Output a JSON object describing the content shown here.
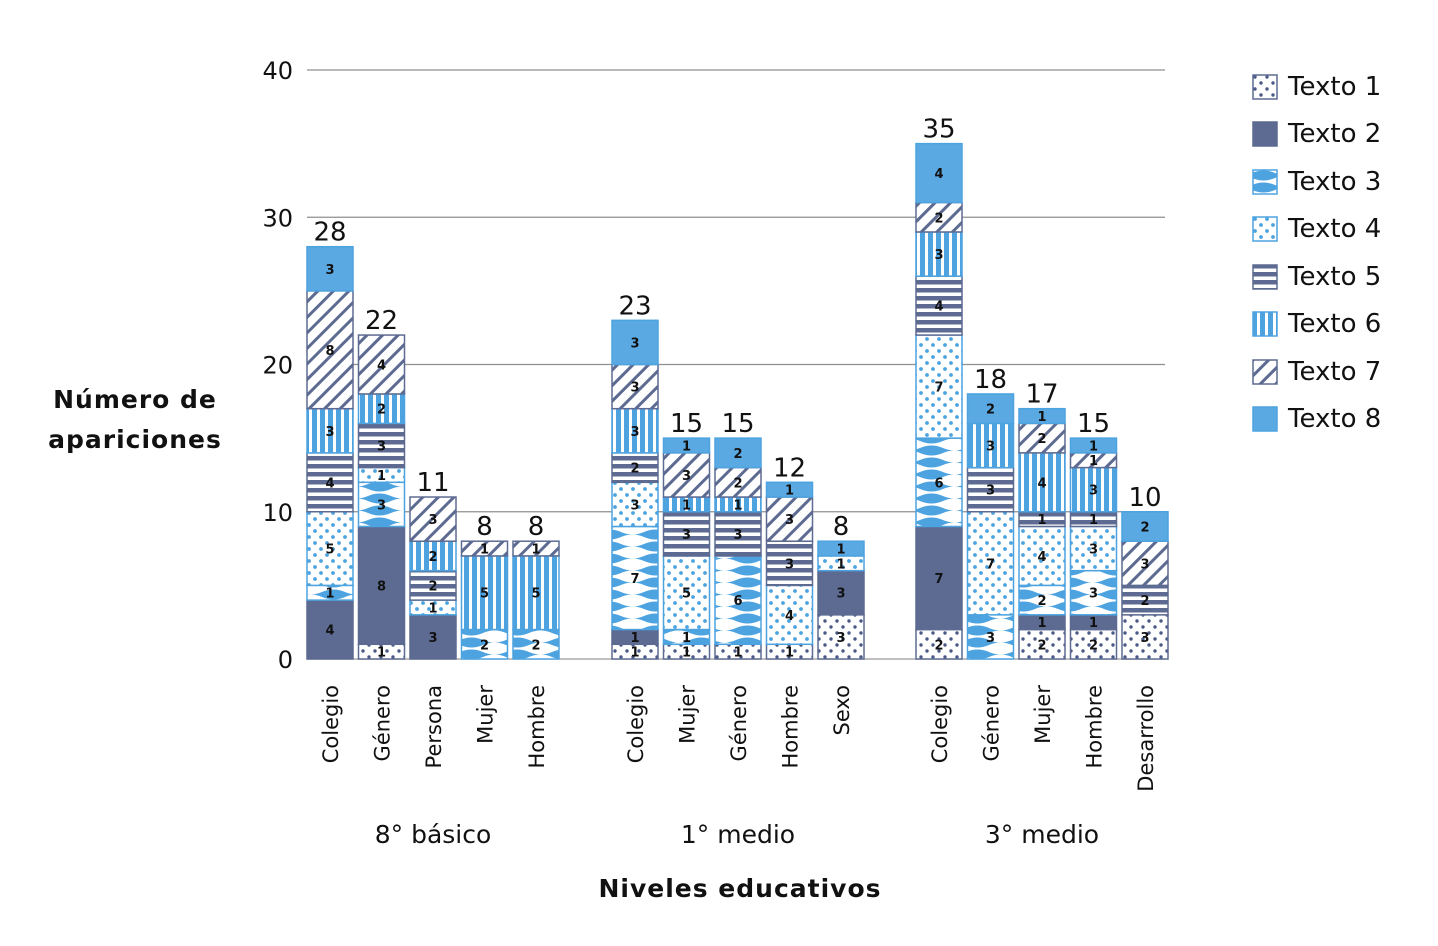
{
  "chart_data": {
    "type": "bar",
    "stacked": true,
    "title": "",
    "xlabel": "Niveles educativos",
    "ylabel": "Número de\napariciones",
    "ylim": [
      0,
      40
    ],
    "yticks": [
      0,
      10,
      20,
      30,
      40
    ],
    "grid": true,
    "legend_position": "right",
    "groups": [
      {
        "label": "8° básico",
        "categories": [
          "Colegio",
          "Género",
          "Persona",
          "Mujer",
          "Hombre"
        ]
      },
      {
        "label": "1° medio",
        "categories": [
          "Colegio",
          "Mujer",
          "Género",
          "Hombre",
          "Sexo"
        ]
      },
      {
        "label": "3° medio",
        "categories": [
          "Colegio",
          "Género",
          "Mujer",
          "Hombre",
          "Desarrollo"
        ]
      }
    ],
    "totals": [
      28,
      22,
      11,
      8,
      8,
      23,
      15,
      15,
      12,
      8,
      35,
      18,
      17,
      15,
      10
    ],
    "series": [
      {
        "name": "Texto 1",
        "pattern": "dots-dark",
        "color": "#3d4f7c",
        "values": [
          0,
          1,
          0,
          0,
          0,
          1,
          1,
          1,
          1,
          3,
          2,
          0,
          2,
          2,
          3
        ]
      },
      {
        "name": "Texto 2",
        "pattern": "solid",
        "color": "#5d6b92",
        "values": [
          4,
          8,
          3,
          0,
          0,
          1,
          0,
          0,
          0,
          3,
          7,
          0,
          1,
          1,
          0
        ]
      },
      {
        "name": "Texto 3",
        "pattern": "waves",
        "color": "#4da3e0",
        "values": [
          1,
          3,
          0,
          2,
          2,
          7,
          1,
          6,
          0,
          0,
          6,
          3,
          2,
          3,
          0
        ]
      },
      {
        "name": "Texto 4",
        "pattern": "dots-light",
        "color": "#4da3e0",
        "values": [
          5,
          1,
          1,
          0,
          0,
          3,
          5,
          0,
          4,
          1,
          7,
          7,
          4,
          3,
          0
        ]
      },
      {
        "name": "Texto 5",
        "pattern": "horizontal",
        "color": "#5d6b92",
        "values": [
          4,
          3,
          2,
          0,
          0,
          2,
          3,
          3,
          3,
          0,
          4,
          3,
          1,
          1,
          2
        ]
      },
      {
        "name": "Texto 6",
        "pattern": "vertical",
        "color": "#4da3e0",
        "values": [
          3,
          2,
          2,
          5,
          5,
          3,
          1,
          1,
          0,
          0,
          3,
          3,
          4,
          3,
          0
        ]
      },
      {
        "name": "Texto 7",
        "pattern": "diagonal",
        "color": "#5d6b92",
        "values": [
          8,
          4,
          3,
          1,
          1,
          3,
          3,
          2,
          3,
          0,
          2,
          0,
          2,
          1,
          3
        ]
      },
      {
        "name": "Texto 8",
        "pattern": "solid",
        "color": "#5aa9e2",
        "values": [
          3,
          0,
          0,
          0,
          0,
          3,
          1,
          2,
          1,
          1,
          4,
          2,
          1,
          1,
          2
        ]
      }
    ]
  }
}
